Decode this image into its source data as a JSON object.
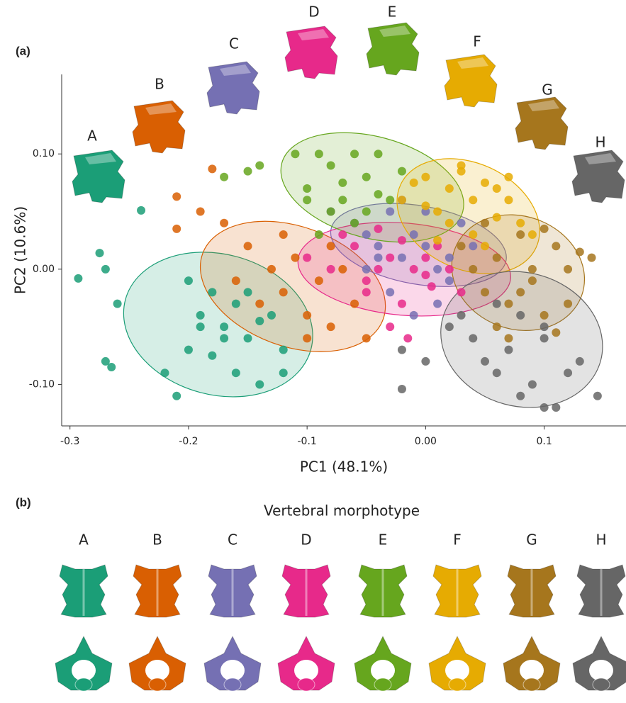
{
  "chart_data": {
    "type": "scatter",
    "panel_label": "(a)",
    "x_label": "PC1 (48.1%)",
    "y_label": "PC2 (10.6%)",
    "xlim": [
      -0.307,
      0.169
    ],
    "ylim": [
      -0.136,
      0.169
    ],
    "xticks": [
      -0.3,
      -0.2,
      -0.1,
      {
        "value": 0,
        "label": "0.00"
      },
      0.1
    ],
    "yticks": [
      {
        "value": -0.1,
        "label": "-0.10"
      },
      {
        "value": 0,
        "label": "0.00"
      },
      {
        "value": 0.1,
        "label": "0.10"
      }
    ],
    "series": [
      {
        "name": "A",
        "color": "#1b9e77",
        "x": [
          -0.293,
          -0.275,
          -0.27,
          -0.26,
          -0.27,
          -0.265,
          -0.24,
          -0.22,
          -0.21,
          -0.2,
          -0.19,
          -0.18,
          -0.17,
          -0.16,
          -0.15,
          -0.14,
          -0.13,
          -0.12,
          -0.2,
          -0.18,
          -0.16,
          -0.14,
          -0.15,
          -0.17,
          -0.12,
          -0.19
        ],
        "y": [
          -0.008,
          0.014,
          0.0,
          -0.03,
          -0.08,
          -0.085,
          0.051,
          -0.09,
          -0.11,
          -0.07,
          -0.04,
          -0.02,
          -0.05,
          -0.03,
          -0.06,
          -0.1,
          -0.04,
          -0.07,
          -0.01,
          -0.075,
          -0.09,
          -0.045,
          -0.02,
          -0.06,
          -0.09,
          -0.05
        ],
        "ellipse": {
          "center": [
            -0.175,
            -0.048
          ],
          "radii": [
            0.081,
            0.061
          ],
          "angle": -15
        }
      },
      {
        "name": "B",
        "color": "#d95f02",
        "x": [
          -0.21,
          -0.21,
          -0.18,
          -0.19,
          -0.17,
          -0.15,
          -0.13,
          -0.12,
          -0.11,
          -0.1,
          -0.09,
          -0.08,
          -0.07,
          -0.06,
          -0.14,
          -0.12,
          -0.1,
          -0.08,
          -0.16,
          -0.05
        ],
        "y": [
          0.063,
          0.035,
          0.087,
          0.05,
          0.04,
          0.02,
          0.0,
          -0.02,
          0.01,
          -0.04,
          -0.01,
          -0.05,
          0.0,
          -0.03,
          -0.03,
          0.03,
          -0.06,
          0.02,
          -0.01,
          -0.06
        ],
        "ellipse": {
          "center": [
            -0.112,
            -0.015
          ],
          "radii": [
            0.081,
            0.052
          ],
          "angle": -20
        }
      },
      {
        "name": "C",
        "color": "#7570b3",
        "x": [
          -0.08,
          -0.06,
          -0.05,
          -0.04,
          -0.03,
          -0.02,
          -0.01,
          0.0,
          0.01,
          0.02,
          0.03,
          -0.05,
          -0.03,
          -0.01,
          0.01,
          -0.02,
          0.0,
          0.04,
          -0.04,
          0.02
        ],
        "y": [
          0.05,
          0.04,
          0.03,
          0.02,
          0.05,
          0.01,
          0.03,
          0.02,
          0.0,
          0.01,
          0.04,
          0.0,
          -0.02,
          -0.04,
          -0.03,
          0.06,
          0.05,
          0.02,
          0.01,
          -0.01
        ],
        "ellipse": {
          "center": [
            -0.006,
            0.021
          ],
          "radii": [
            0.075,
            0.034
          ],
          "angle": -10
        }
      },
      {
        "name": "D",
        "color": "#e7298a",
        "x": [
          -0.1,
          -0.08,
          -0.06,
          -0.05,
          -0.04,
          -0.03,
          -0.02,
          -0.01,
          0.0,
          0.01,
          0.03,
          -0.07,
          -0.05,
          -0.03,
          -0.015,
          0.0,
          0.02,
          -0.02,
          -0.04,
          0.005
        ],
        "y": [
          0.01,
          0.0,
          0.02,
          -0.01,
          0.0,
          0.01,
          -0.03,
          0.0,
          -0.005,
          0.02,
          -0.02,
          0.03,
          -0.02,
          -0.05,
          -0.06,
          0.01,
          0.0,
          0.025,
          0.035,
          -0.015
        ],
        "ellipse": {
          "center": [
            -0.018,
            0.0
          ],
          "radii": [
            0.09,
            0.04
          ],
          "angle": -5
        }
      },
      {
        "name": "E",
        "color": "#66a61e",
        "x": [
          -0.17,
          -0.15,
          -0.14,
          -0.11,
          -0.1,
          -0.09,
          -0.08,
          -0.07,
          -0.06,
          -0.05,
          -0.04,
          -0.03,
          -0.02,
          -0.06,
          -0.08,
          -0.1,
          -0.04,
          -0.07,
          -0.09,
          -0.05
        ],
        "y": [
          0.08,
          0.085,
          0.09,
          0.1,
          0.07,
          0.1,
          0.09,
          0.06,
          0.1,
          0.08,
          0.1,
          0.06,
          0.085,
          0.04,
          0.05,
          0.06,
          0.065,
          0.075,
          0.03,
          0.05
        ],
        "ellipse": {
          "center": [
            -0.045,
            0.071
          ],
          "radii": [
            0.079,
            0.044
          ],
          "angle": -15
        }
      },
      {
        "name": "F",
        "color": "#e6ab02",
        "x": [
          -0.02,
          -0.01,
          0.0,
          0.01,
          0.02,
          0.03,
          0.04,
          0.05,
          0.06,
          0.07,
          0.08,
          0.02,
          0.04,
          0.06,
          0.03,
          0.05,
          0.0,
          0.07,
          0.01,
          0.09
        ],
        "y": [
          0.06,
          0.075,
          0.08,
          0.05,
          0.07,
          0.085,
          0.06,
          0.075,
          0.07,
          0.06,
          0.04,
          0.04,
          0.03,
          0.045,
          0.09,
          0.02,
          0.055,
          0.08,
          0.025,
          0.03
        ],
        "ellipse": {
          "center": [
            0.036,
            0.046
          ],
          "radii": [
            0.063,
            0.046
          ],
          "angle": -25
        }
      },
      {
        "name": "G",
        "color": "#a6761d",
        "x": [
          0.03,
          0.04,
          0.05,
          0.06,
          0.07,
          0.08,
          0.09,
          0.1,
          0.11,
          0.12,
          0.13,
          0.06,
          0.08,
          0.1,
          0.12,
          0.05,
          0.07,
          0.09,
          0.11,
          0.14
        ],
        "y": [
          0.02,
          0.0,
          -0.02,
          0.01,
          -0.03,
          0.03,
          0.0,
          -0.04,
          0.02,
          0.0,
          0.015,
          -0.05,
          -0.02,
          0.035,
          -0.03,
          0.04,
          -0.06,
          -0.01,
          -0.055,
          0.01
        ],
        "ellipse": {
          "center": [
            0.078,
            -0.003
          ],
          "radii": [
            0.057,
            0.049
          ],
          "angle": -20
        }
      },
      {
        "name": "H",
        "color": "#666666",
        "x": [
          -0.02,
          -0.02,
          0.0,
          0.02,
          0.04,
          0.05,
          0.06,
          0.07,
          0.08,
          0.09,
          0.1,
          0.11,
          0.12,
          0.13,
          0.145,
          0.08,
          0.1,
          0.06,
          0.03,
          0.1
        ],
        "y": [
          -0.104,
          -0.07,
          -0.08,
          -0.05,
          -0.06,
          -0.08,
          -0.09,
          -0.07,
          -0.11,
          -0.1,
          -0.06,
          -0.12,
          -0.09,
          -0.08,
          -0.11,
          -0.04,
          -0.05,
          -0.03,
          -0.04,
          -0.12
        ],
        "ellipse": {
          "center": [
            0.081,
            -0.061
          ],
          "radii": [
            0.069,
            0.058
          ],
          "angle": -15
        }
      }
    ]
  },
  "morphotype_panel": {
    "label": "(b)",
    "title": "Vertebral morphotype"
  }
}
